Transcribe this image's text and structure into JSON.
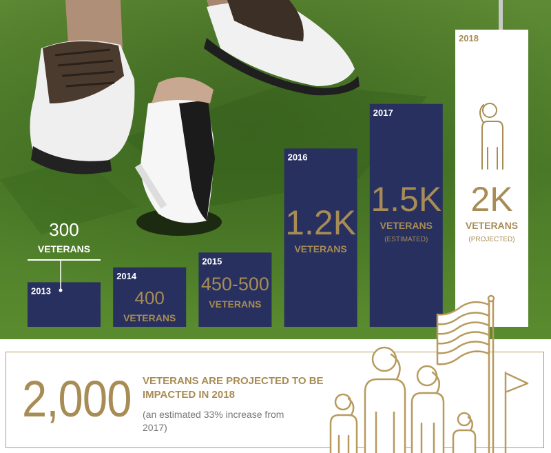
{
  "chart_data": {
    "type": "bar",
    "categories": [
      "2013",
      "2014",
      "2015",
      "2016",
      "2017",
      "2018"
    ],
    "values": [
      300,
      400,
      500,
      1200,
      1500,
      2000
    ],
    "value_labels": [
      "300",
      "400",
      "450-500",
      "1.2K",
      "1.5K",
      "2K"
    ],
    "unit_label": "VETERANS",
    "notes": [
      "",
      "",
      "",
      "",
      "(ESTIMATED)",
      "(PROJECTED)"
    ],
    "ylim": [
      0,
      2000
    ]
  },
  "bottom": {
    "big_number": "2,000",
    "headline": "VETERANS ARE PROJECTED TO BE IMPACTED IN 2018",
    "subtext": "(an estimated 33% increase from 2017)"
  },
  "colors": {
    "bar": "#27305f",
    "bar_highlight": "#ffffff",
    "gold": "#a88c55",
    "grass": "#4f7a2a"
  },
  "icons": [
    "golf-shoe-photo",
    "saluting-veteran-icon",
    "flag-pole-icon",
    "golf-flag-icon",
    "saluting-family-icon"
  ]
}
